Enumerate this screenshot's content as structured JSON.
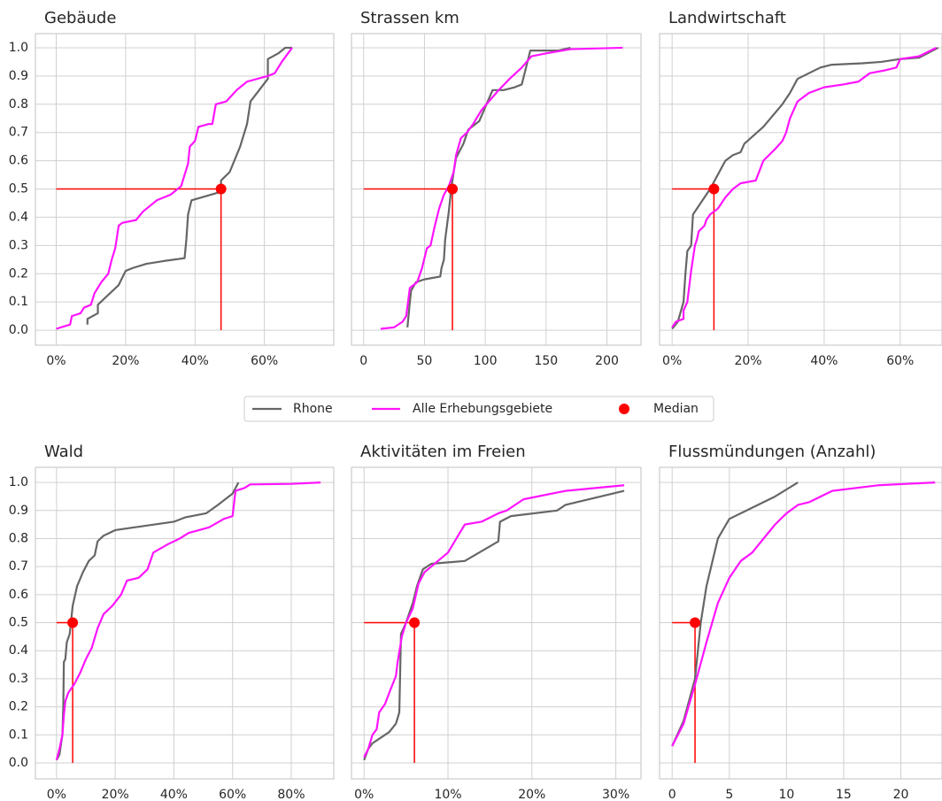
{
  "chart_data": [
    {
      "type": "line",
      "title": "Gebäude",
      "xlim": [
        -6,
        80
      ],
      "xticks": [
        {
          "value": 0,
          "label": "0%"
        },
        {
          "value": 20,
          "label": "20%"
        },
        {
          "value": 40,
          "label": "40%"
        },
        {
          "value": 60,
          "label": "60%"
        }
      ],
      "ylim": [
        -0.053,
        1.05
      ],
      "yticks": [
        {
          "value": 0,
          "label": "0.0"
        },
        0.1,
        0.2,
        0.3,
        0.4,
        0.5,
        0.6,
        0.7,
        0.8,
        0.9,
        {
          "value": 1,
          "label": "1.0"
        }
      ],
      "series": [
        {
          "color": "#666666",
          "x": [
            9,
            9,
            12,
            12,
            18,
            20,
            22,
            26,
            31,
            37,
            37.5,
            38,
            39,
            47.5,
            47.5,
            50,
            53,
            55,
            56,
            61,
            61,
            64,
            66,
            68
          ],
          "values": [
            0.02,
            0.04,
            0.06,
            0.09,
            0.16,
            0.21,
            0.22,
            0.235,
            0.245,
            0.255,
            0.32,
            0.41,
            0.46,
            0.49,
            0.53,
            0.56,
            0.65,
            0.73,
            0.81,
            0.89,
            0.96,
            0.98,
            1.0,
            1.0
          ]
        },
        {
          "color": "#ff14ff",
          "x": [
            0,
            4,
            4.5,
            7,
            8,
            10,
            11,
            13,
            15,
            16,
            17,
            18,
            19,
            23,
            25,
            27,
            29,
            33,
            36,
            37,
            38,
            38.5,
            40,
            41,
            44,
            45,
            46,
            49,
            52,
            55,
            61,
            63,
            65,
            68
          ],
          "values": [
            0.005,
            0.02,
            0.05,
            0.06,
            0.08,
            0.09,
            0.13,
            0.17,
            0.2,
            0.25,
            0.29,
            0.37,
            0.38,
            0.39,
            0.42,
            0.44,
            0.46,
            0.48,
            0.51,
            0.55,
            0.59,
            0.65,
            0.67,
            0.72,
            0.73,
            0.73,
            0.8,
            0.81,
            0.85,
            0.88,
            0.9,
            0.91,
            0.95,
            1.0
          ]
        }
      ],
      "median": {
        "x": 47.5,
        "y": 0.5,
        "color": "#ff0000"
      }
    },
    {
      "type": "line",
      "title": "Strassen km",
      "xlim": [
        -10,
        228
      ],
      "xticks": [
        0,
        50,
        100,
        150,
        200
      ],
      "ylim": [
        -0.053,
        1.05
      ],
      "yticks": [
        0,
        0.1,
        0.2,
        0.3,
        0.4,
        0.5,
        0.6,
        0.7,
        0.8,
        0.9,
        1
      ],
      "series": [
        {
          "color": "#666666",
          "x": [
            36,
            38,
            39,
            43,
            50,
            63,
            64,
            66,
            67,
            70,
            72,
            74,
            76,
            82,
            86,
            95,
            102,
            106,
            115,
            124,
            130,
            137,
            160,
            170
          ],
          "values": [
            0.01,
            0.1,
            0.14,
            0.17,
            0.18,
            0.19,
            0.22,
            0.25,
            0.32,
            0.42,
            0.5,
            0.56,
            0.61,
            0.66,
            0.71,
            0.74,
            0.81,
            0.85,
            0.85,
            0.86,
            0.87,
            0.99,
            0.99,
            1.0
          ]
        },
        {
          "color": "#ff14ff",
          "x": [
            14,
            25,
            32,
            35,
            38,
            44,
            48,
            52,
            55,
            58,
            62,
            66,
            70,
            74,
            76,
            80,
            85,
            90,
            97,
            105,
            111,
            120,
            130,
            138,
            150,
            170,
            213
          ],
          "values": [
            0.005,
            0.01,
            0.03,
            0.05,
            0.15,
            0.17,
            0.22,
            0.29,
            0.3,
            0.36,
            0.43,
            0.48,
            0.51,
            0.56,
            0.62,
            0.68,
            0.7,
            0.73,
            0.78,
            0.82,
            0.85,
            0.89,
            0.93,
            0.97,
            0.98,
            0.995,
            1.0
          ]
        }
      ],
      "median": {
        "x": 73,
        "y": 0.5,
        "color": "#ff0000"
      }
    },
    {
      "type": "line",
      "title": "Landwirtschaft",
      "xlim": [
        -3.3,
        71
      ],
      "xticks": [
        {
          "value": 0,
          "label": "0%"
        },
        {
          "value": 20,
          "label": "20%"
        },
        {
          "value": 40,
          "label": "40%"
        },
        {
          "value": 60,
          "label": "60%"
        }
      ],
      "ylim": [
        -0.053,
        1.05
      ],
      "yticks": [
        0,
        0.1,
        0.2,
        0.3,
        0.4,
        0.5,
        0.6,
        0.7,
        0.8,
        0.9,
        1
      ],
      "series": [
        {
          "color": "#666666",
          "x": [
            0,
            1.5,
            3,
            3.5,
            4,
            5,
            5.5,
            8,
            10,
            12,
            14,
            16,
            18,
            19,
            24,
            29,
            31,
            33,
            36,
            39,
            42,
            50,
            55,
            60,
            65,
            70
          ],
          "values": [
            0.005,
            0.03,
            0.1,
            0.2,
            0.28,
            0.3,
            0.41,
            0.46,
            0.5,
            0.55,
            0.6,
            0.62,
            0.63,
            0.66,
            0.72,
            0.8,
            0.84,
            0.89,
            0.91,
            0.93,
            0.94,
            0.945,
            0.95,
            0.96,
            0.965,
            1.0
          ]
        },
        {
          "color": "#ff14ff",
          "x": [
            0,
            1,
            3,
            3,
            4,
            5,
            6,
            6.5,
            7,
            8.5,
            9,
            10,
            12,
            14,
            16,
            18,
            22,
            24,
            27,
            29,
            30,
            31,
            33,
            36,
            40,
            45,
            49,
            52,
            56,
            59,
            60,
            65,
            68,
            69.5
          ],
          "values": [
            0.01,
            0.03,
            0.04,
            0.07,
            0.1,
            0.21,
            0.3,
            0.32,
            0.35,
            0.37,
            0.39,
            0.41,
            0.43,
            0.47,
            0.5,
            0.52,
            0.53,
            0.6,
            0.64,
            0.67,
            0.7,
            0.75,
            0.81,
            0.84,
            0.86,
            0.87,
            0.88,
            0.91,
            0.92,
            0.93,
            0.96,
            0.97,
            0.99,
            1.0
          ]
        }
      ],
      "median": {
        "x": 11,
        "y": 0.5,
        "color": "#ff0000"
      }
    },
    {
      "type": "line",
      "title": "Wald",
      "xlim": [
        -7.2,
        94.5
      ],
      "xticks": [
        {
          "value": 0,
          "label": "0%"
        },
        {
          "value": 20,
          "label": "20%"
        },
        {
          "value": 40,
          "label": "40%"
        },
        {
          "value": 60,
          "label": "60%"
        },
        {
          "value": 80,
          "label": "80%"
        }
      ],
      "ylim": [
        -0.057,
        1.054
      ],
      "yticks": [
        {
          "value": 0,
          "label": "0.0"
        },
        0.1,
        0.2,
        0.3,
        0.4,
        0.5,
        0.6,
        0.7,
        0.8,
        0.9,
        {
          "value": 1,
          "label": "1.0"
        }
      ],
      "series": [
        {
          "color": "#666666",
          "x": [
            0,
            1,
            2,
            2.3,
            2.5,
            3,
            3.5,
            4.5,
            5.5,
            7,
            9,
            11,
            13,
            14,
            16,
            20,
            30,
            40,
            44,
            51,
            55,
            60,
            62
          ],
          "values": [
            0.01,
            0.03,
            0.1,
            0.2,
            0.36,
            0.37,
            0.43,
            0.46,
            0.56,
            0.63,
            0.68,
            0.72,
            0.74,
            0.79,
            0.81,
            0.83,
            0.845,
            0.86,
            0.876,
            0.89,
            0.92,
            0.96,
            1.0
          ]
        },
        {
          "color": "#ff14ff",
          "x": [
            0,
            1,
            2,
            2.5,
            3,
            4,
            6,
            8,
            10,
            12,
            14,
            16,
            19,
            22,
            24,
            28,
            31,
            33,
            38,
            42,
            45,
            52,
            57,
            60,
            61,
            64,
            66,
            80,
            90
          ],
          "values": [
            0.01,
            0.05,
            0.1,
            0.17,
            0.22,
            0.25,
            0.28,
            0.32,
            0.37,
            0.41,
            0.48,
            0.53,
            0.56,
            0.6,
            0.65,
            0.66,
            0.69,
            0.75,
            0.78,
            0.8,
            0.82,
            0.84,
            0.87,
            0.88,
            0.97,
            0.98,
            0.993,
            0.995,
            1.0
          ]
        }
      ],
      "median": {
        "x": 5.5,
        "y": 0.5,
        "color": "#ff0000"
      }
    },
    {
      "type": "line",
      "title": "Aktivitäten im Freien",
      "xlim": [
        -1.5,
        33
      ],
      "xticks": [
        {
          "value": 0,
          "label": "0%"
        },
        {
          "value": 10,
          "label": "10%"
        },
        {
          "value": 20,
          "label": "20%"
        },
        {
          "value": 30,
          "label": "30%"
        }
      ],
      "ylim": [
        -0.057,
        1.054
      ],
      "yticks": [
        0,
        0.1,
        0.2,
        0.3,
        0.4,
        0.5,
        0.6,
        0.7,
        0.8,
        0.9,
        1
      ],
      "series": [
        {
          "color": "#666666",
          "x": [
            0,
            0.5,
            1,
            2,
            3,
            3.8,
            4.2,
            4.4,
            5,
            5.8,
            6.3,
            7,
            8,
            12,
            16,
            16.2,
            17.5,
            23,
            24,
            31
          ],
          "values": [
            0.01,
            0.05,
            0.07,
            0.09,
            0.11,
            0.14,
            0.18,
            0.46,
            0.5,
            0.57,
            0.63,
            0.69,
            0.71,
            0.72,
            0.79,
            0.86,
            0.88,
            0.9,
            0.92,
            0.97
          ]
        },
        {
          "color": "#ff14ff",
          "x": [
            0,
            0.5,
            1,
            1.5,
            1.8,
            2.5,
            3,
            3.8,
            4,
            4.5,
            5,
            5.8,
            6.5,
            7.2,
            8,
            10,
            11,
            12,
            14,
            16,
            17,
            19,
            24,
            31
          ],
          "values": [
            0.02,
            0.05,
            0.1,
            0.12,
            0.18,
            0.21,
            0.25,
            0.31,
            0.36,
            0.45,
            0.5,
            0.55,
            0.64,
            0.68,
            0.7,
            0.75,
            0.8,
            0.85,
            0.86,
            0.89,
            0.9,
            0.94,
            0.97,
            0.99
          ]
        }
      ],
      "median": {
        "x": 6,
        "y": 0.5,
        "color": "#ff0000"
      }
    },
    {
      "type": "line",
      "title": "Flussmündungen (Anzahl)",
      "xlim": [
        -1.1,
        23.6
      ],
      "xticks": [
        0,
        5,
        10,
        15,
        20
      ],
      "ylim": [
        -0.057,
        1.054
      ],
      "yticks": [
        0,
        0.1,
        0.2,
        0.3,
        0.4,
        0.5,
        0.6,
        0.7,
        0.8,
        0.9,
        1
      ],
      "series": [
        {
          "color": "#666666",
          "x": [
            0,
            1,
            2,
            2.5,
            3,
            4,
            5,
            7,
            9,
            11
          ],
          "values": [
            0.06,
            0.15,
            0.3,
            0.5,
            0.63,
            0.8,
            0.87,
            0.91,
            0.95,
            1.0
          ]
        },
        {
          "color": "#ff14ff",
          "x": [
            0,
            1,
            2,
            3,
            4,
            5,
            6,
            7,
            8,
            9,
            10,
            11,
            12,
            14,
            18,
            23
          ],
          "values": [
            0.06,
            0.14,
            0.28,
            0.43,
            0.57,
            0.66,
            0.72,
            0.75,
            0.8,
            0.85,
            0.89,
            0.92,
            0.93,
            0.97,
            0.99,
            1.0
          ]
        }
      ],
      "median": {
        "x": 2,
        "y": 0.5,
        "color": "#ff0000"
      }
    }
  ],
  "legend": [
    "Rhone",
    "Alle Erhebungsgebiete",
    "Median"
  ]
}
